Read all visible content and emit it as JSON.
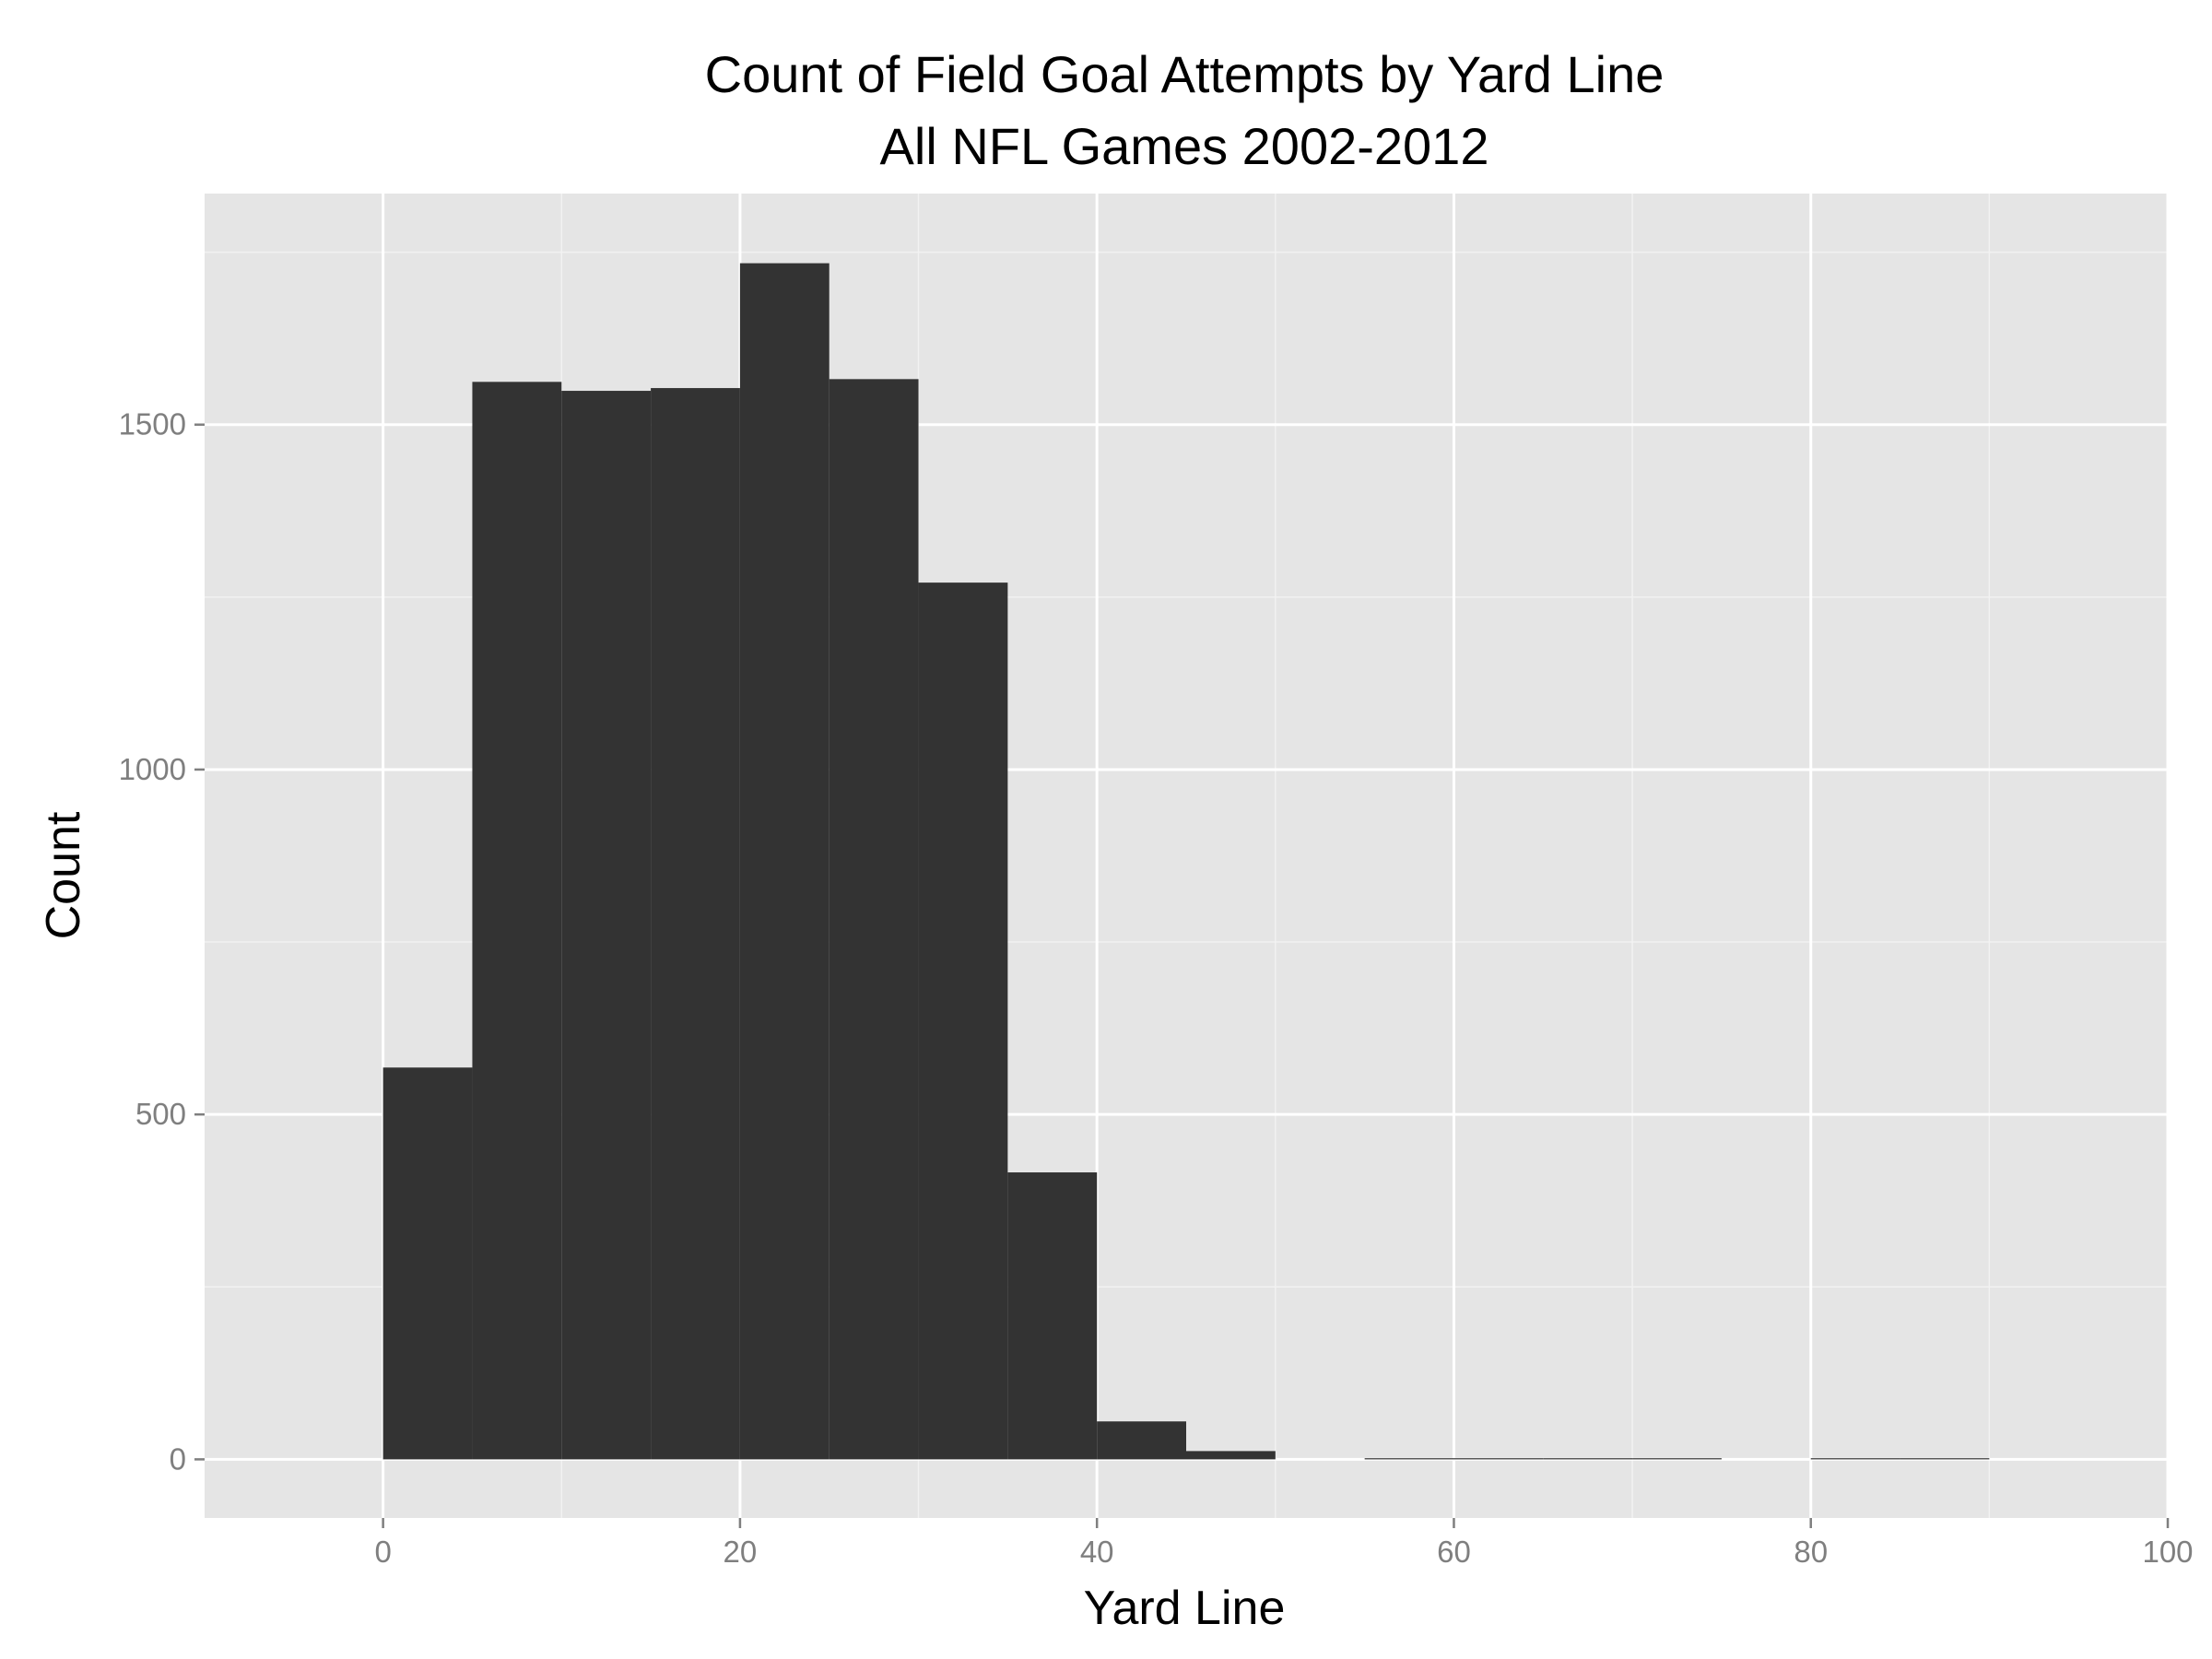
{
  "chart_data": {
    "type": "bar",
    "title": "Count of Field Goal Attempts by Yard Line",
    "subtitle": "All NFL Games 2002-2012",
    "xlabel": "Yard Line",
    "ylabel": "Count",
    "xlim": [
      -10,
      100
    ],
    "ylim": [
      -85,
      1835
    ],
    "x_ticks": [
      {
        "value": 0,
        "label": "0"
      },
      {
        "value": 20,
        "label": "20"
      },
      {
        "value": 40,
        "label": "40"
      },
      {
        "value": 60,
        "label": "60"
      },
      {
        "value": 80,
        "label": "80"
      },
      {
        "value": 100,
        "label": "100"
      }
    ],
    "y_ticks": [
      {
        "value": 0,
        "label": "0"
      },
      {
        "value": 500,
        "label": "500"
      },
      {
        "value": 1000,
        "label": "1000"
      },
      {
        "value": 1500,
        "label": "1500"
      }
    ],
    "bin_width": 5,
    "bins": [
      {
        "start": 0,
        "end": 5,
        "count": 568
      },
      {
        "start": 5,
        "end": 10,
        "count": 1562
      },
      {
        "start": 10,
        "end": 15,
        "count": 1549
      },
      {
        "start": 15,
        "end": 20,
        "count": 1553
      },
      {
        "start": 20,
        "end": 25,
        "count": 1734
      },
      {
        "start": 25,
        "end": 30,
        "count": 1566
      },
      {
        "start": 30,
        "end": 35,
        "count": 1271
      },
      {
        "start": 35,
        "end": 40,
        "count": 416
      },
      {
        "start": 40,
        "end": 45,
        "count": 55
      },
      {
        "start": 45,
        "end": 50,
        "count": 12
      },
      {
        "start": 50,
        "end": 55,
        "count": 0
      },
      {
        "start": 55,
        "end": 60,
        "count": 1
      },
      {
        "start": 60,
        "end": 65,
        "count": 1
      },
      {
        "start": 65,
        "end": 70,
        "count": 1
      },
      {
        "start": 70,
        "end": 75,
        "count": 1
      },
      {
        "start": 75,
        "end": 80,
        "count": 0
      },
      {
        "start": 80,
        "end": 85,
        "count": 1
      },
      {
        "start": 85,
        "end": 90,
        "count": 1
      }
    ],
    "grid": true,
    "legend": "none",
    "colors": {
      "bar": "#333333",
      "panel": "#e5e5e5",
      "grid_major": "#ffffff",
      "grid_minor": "#f2f2f2"
    }
  }
}
